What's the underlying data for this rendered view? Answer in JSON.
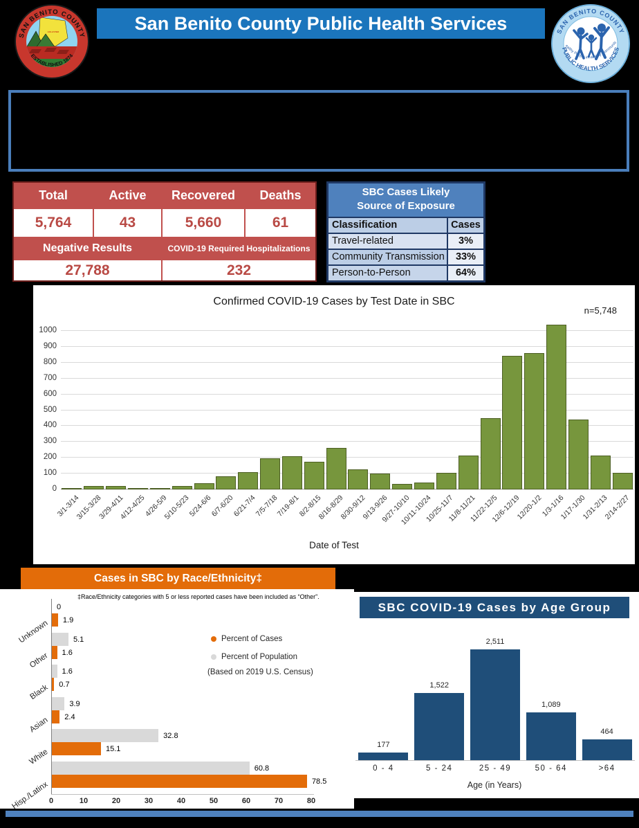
{
  "header": {
    "title": "San Benito County Public Health Services",
    "left_seal": {
      "arc_top": "SAN BENITO COUNTY",
      "arc_bottom": "ESTABLISHED 1874",
      "inner_label": "HOLLISTER"
    },
    "right_logo": {
      "arc_top": "SAN BENITO COUNTY",
      "arc_bottom": "PUBLIC HEALTH SERVICES",
      "arc_inner": "Healthy People in Healthy Communities"
    }
  },
  "stats_table": {
    "columns": [
      "Total",
      "Active",
      "Recovered",
      "Deaths"
    ],
    "values": [
      "5,764",
      "43",
      "5,660",
      "61"
    ],
    "secondary_columns": [
      "Negative Results",
      "COVID-19 Required Hospitalizations"
    ],
    "secondary_values": [
      "27,788",
      "232"
    ]
  },
  "exposure_table": {
    "title_line1": "SBC Cases Likely",
    "title_line2": "Source of Exposure",
    "col_headers": [
      "Classification",
      "Cases"
    ],
    "rows": [
      {
        "label": "Travel-related",
        "value": "3%"
      },
      {
        "label": "Community Transmission",
        "value": "33%"
      },
      {
        "label": "Person-to-Person",
        "value": "64%"
      }
    ],
    "row_label_bgs": [
      "#D9E2F1",
      "#BCCEE6",
      "#C6D5EA"
    ]
  },
  "colors": {
    "title_bar_blue": "#1B75BC",
    "table_red": "#C0504D",
    "exposure_blue": "#4F81BD",
    "green_bar": "#77963D",
    "orange": "#E36C09",
    "gray_bar": "#D9D9D9",
    "navy": "#1F4E79",
    "footer_blue": "#4F81BD"
  },
  "chart_data": [
    {
      "type": "bar",
      "title": "Confirmed COVID-19 Cases by Test Date in SBC",
      "annotation": "n=5,748",
      "xlabel": "Date of Test",
      "ylim": [
        0,
        1000
      ],
      "ytick_step": 100,
      "grid": true,
      "bar_color": "#77963D",
      "categories": [
        "3/1-3/14",
        "3/15-3/28",
        "3/29-4/11",
        "4/12-4/25",
        "4/26-5/9",
        "5/10-5/23",
        "5/24-6/6",
        "6/7-6/20",
        "6/21-7/4",
        "7/5-7/18",
        "7/19-8/1",
        "8/2-8/15",
        "8/16-8/29",
        "8/30-9/12",
        "9/13-9/26",
        "9/27-10/10",
        "10/11-10/24",
        "10/25-11/7",
        "11/8-11/21",
        "11/22-12/5",
        "12/6-12/19",
        "12/20-1/2",
        "1/3-1/16",
        "1/17-1/30",
        "1/31-2/13",
        "2/14-2/27"
      ],
      "values": [
        5,
        20,
        20,
        5,
        5,
        20,
        38,
        85,
        110,
        195,
        210,
        175,
        260,
        125,
        100,
        35,
        45,
        105,
        215,
        450,
        845,
        860,
        1040,
        440,
        215,
        105
      ]
    },
    {
      "type": "bar-horizontal-grouped",
      "title": "Cases in SBC by Race/Ethnicity‡",
      "footnote": "‡Race/Ethnicity categories with 5 or less reported cases have been included as “Other”.",
      "categories": [
        "Unknown",
        "Other",
        "Black",
        "Asian",
        "White",
        "Hisp./Latinx"
      ],
      "series": [
        {
          "name": "Percent of Cases",
          "color": "#E36C09",
          "values": [
            1.9,
            1.6,
            0.7,
            2.4,
            15.1,
            78.5
          ]
        },
        {
          "name": "Percent of Population",
          "color": "#D9D9D9",
          "values": [
            0,
            5.1,
            1.6,
            3.9,
            32.8,
            60.8
          ]
        }
      ],
      "legend_note": "(Based on 2019 U.S. Census)",
      "xlim": [
        0,
        80
      ],
      "xticks": [
        0,
        10,
        20,
        30,
        40,
        50,
        60,
        70,
        80
      ]
    },
    {
      "type": "bar",
      "title": "SBC COVID-19 Cases by Age Group",
      "xlabel": "Age (in Years)",
      "bar_color": "#1F4E79",
      "categories": [
        "0 - 4",
        "5 - 24",
        "25 - 49",
        "50 - 64",
        ">64"
      ],
      "values": [
        177,
        1522,
        2511,
        1089,
        464
      ],
      "value_labels": [
        "177",
        "1,522",
        "2,511",
        "1,089",
        "464"
      ]
    }
  ]
}
